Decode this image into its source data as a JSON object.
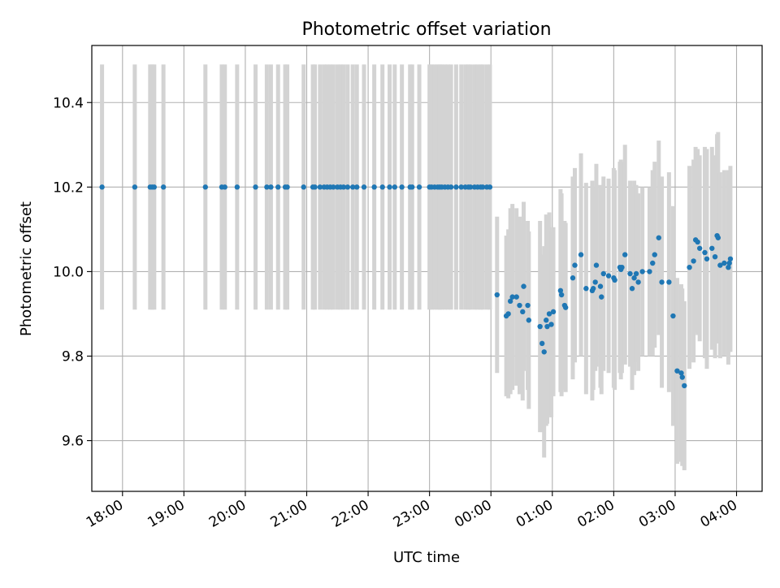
{
  "chart_data": {
    "type": "scatter",
    "title": "Photometric offset variation",
    "xlabel": "UTC time",
    "ylabel": "Photometric offset",
    "x_ticks": [
      "18:00",
      "19:00",
      "20:00",
      "21:00",
      "22:00",
      "23:00",
      "00:00",
      "01:00",
      "02:00",
      "03:00",
      "04:00"
    ],
    "y_ticks": [
      "9.6",
      "9.8",
      "10.0",
      "10.2",
      "10.4"
    ],
    "xlim": [
      "17:30",
      "04:25"
    ],
    "ylim": [
      9.48,
      10.535
    ],
    "grid": true,
    "legend": "none",
    "colors": {
      "points": "#1f77b4",
      "errorbars": "#d3d3d3",
      "grid": "#b0b0b0"
    },
    "series": [
      {
        "points": [
          [
            "17:40",
            10.2,
            0.29
          ],
          [
            "18:12",
            10.2,
            0.29
          ],
          [
            "18:27",
            10.2,
            0.29
          ],
          [
            "18:29",
            10.2,
            0.29
          ],
          [
            "18:31",
            10.2,
            0.29
          ],
          [
            "18:40",
            10.2,
            0.29
          ],
          [
            "19:21",
            10.2,
            0.29
          ],
          [
            "19:37",
            10.2,
            0.29
          ],
          [
            "19:40",
            10.2,
            0.29
          ],
          [
            "19:52",
            10.2,
            0.29
          ],
          [
            "20:10",
            10.2,
            0.29
          ],
          [
            "20:21",
            10.2,
            0.29
          ],
          [
            "20:25",
            10.2,
            0.29
          ],
          [
            "20:32",
            10.2,
            0.29
          ],
          [
            "20:39",
            10.2,
            0.29
          ],
          [
            "20:41",
            10.2,
            0.29
          ],
          [
            "20:57",
            10.2,
            0.29
          ],
          [
            "21:06",
            10.2,
            0.29
          ],
          [
            "21:08",
            10.2,
            0.29
          ],
          [
            "21:13",
            10.2,
            0.29
          ],
          [
            "21:17",
            10.2,
            0.29
          ],
          [
            "21:20",
            10.2,
            0.29
          ],
          [
            "21:23",
            10.2,
            0.29
          ],
          [
            "21:26",
            10.2,
            0.29
          ],
          [
            "21:30",
            10.2,
            0.29
          ],
          [
            "21:33",
            10.2,
            0.29
          ],
          [
            "21:36",
            10.2,
            0.29
          ],
          [
            "21:40",
            10.2,
            0.29
          ],
          [
            "21:45",
            10.2,
            0.29
          ],
          [
            "21:49",
            10.2,
            0.29
          ],
          [
            "21:56",
            10.2,
            0.29
          ],
          [
            "22:06",
            10.2,
            0.29
          ],
          [
            "22:14",
            10.2,
            0.29
          ],
          [
            "22:21",
            10.2,
            0.29
          ],
          [
            "22:26",
            10.2,
            0.29
          ],
          [
            "22:33",
            10.2,
            0.29
          ],
          [
            "22:41",
            10.2,
            0.29
          ],
          [
            "22:43",
            10.2,
            0.29
          ],
          [
            "22:50",
            10.2,
            0.29
          ],
          [
            "23:00",
            10.2,
            0.29
          ],
          [
            "23:02",
            10.2,
            0.29
          ],
          [
            "23:05",
            10.2,
            0.29
          ],
          [
            "23:08",
            10.2,
            0.29
          ],
          [
            "23:10",
            10.2,
            0.29
          ],
          [
            "23:12",
            10.2,
            0.29
          ],
          [
            "23:15",
            10.2,
            0.29
          ],
          [
            "23:18",
            10.2,
            0.29
          ],
          [
            "23:21",
            10.2,
            0.29
          ],
          [
            "23:26",
            10.2,
            0.29
          ],
          [
            "23:31",
            10.2,
            0.29
          ],
          [
            "23:35",
            10.2,
            0.29
          ],
          [
            "23:38",
            10.2,
            0.29
          ],
          [
            "23:40",
            10.2,
            0.29
          ],
          [
            "23:44",
            10.2,
            0.29
          ],
          [
            "23:47",
            10.2,
            0.29
          ],
          [
            "23:50",
            10.2,
            0.29
          ],
          [
            "23:52",
            10.2,
            0.29
          ],
          [
            "23:56",
            10.2,
            0.29
          ],
          [
            "23:59",
            10.2,
            0.29
          ],
          [
            "00:06",
            9.945,
            0.185
          ],
          [
            "00:15",
            9.895,
            0.19
          ],
          [
            "00:17",
            9.9,
            0.2
          ],
          [
            "00:19",
            9.93,
            0.22
          ],
          [
            "00:21",
            9.94,
            0.22
          ],
          [
            "00:25",
            9.94,
            0.21
          ],
          [
            "00:28",
            9.92,
            0.21
          ],
          [
            "00:31",
            9.905,
            0.21
          ],
          [
            "00:32",
            9.965,
            0.2
          ],
          [
            "00:36",
            9.92,
            0.2
          ],
          [
            "00:37",
            9.885,
            0.21
          ],
          [
            "00:48",
            9.87,
            0.25
          ],
          [
            "00:50",
            9.83,
            0.21
          ],
          [
            "00:52",
            9.81,
            0.25
          ],
          [
            "00:54",
            9.885,
            0.25
          ],
          [
            "00:55",
            9.87,
            0.23
          ],
          [
            "00:57",
            9.9,
            0.24
          ],
          [
            "00:59",
            9.875,
            0.22
          ],
          [
            "01:01",
            9.905,
            0.2
          ],
          [
            "01:08",
            9.955,
            0.24
          ],
          [
            "01:09",
            9.945,
            0.24
          ],
          [
            "01:12",
            9.92,
            0.2
          ],
          [
            "01:13",
            9.915,
            0.2
          ],
          [
            "01:20",
            9.985,
            0.24
          ],
          [
            "01:22",
            10.015,
            0.23
          ],
          [
            "01:28",
            10.04,
            0.24
          ],
          [
            "01:33",
            9.96,
            0.25
          ],
          [
            "01:39",
            9.955,
            0.26
          ],
          [
            "01:40",
            9.96,
            0.24
          ],
          [
            "01:42",
            9.975,
            0.21
          ],
          [
            "01:43",
            10.015,
            0.24
          ],
          [
            "01:47",
            9.965,
            0.24
          ],
          [
            "01:48",
            9.94,
            0.23
          ],
          [
            "01:50",
            9.995,
            0.23
          ],
          [
            "01:55",
            9.99,
            0.23
          ],
          [
            "02:00",
            9.985,
            0.26
          ],
          [
            "02:01",
            9.98,
            0.26
          ],
          [
            "02:06",
            10.01,
            0.25
          ],
          [
            "02:07",
            10.005,
            0.26
          ],
          [
            "02:08",
            10.01,
            0.25
          ],
          [
            "02:11",
            10.04,
            0.26
          ],
          [
            "02:16",
            9.995,
            0.22
          ],
          [
            "02:18",
            9.96,
            0.24
          ],
          [
            "02:20",
            9.985,
            0.23
          ],
          [
            "02:22",
            9.995,
            0.21
          ],
          [
            "02:24",
            9.975,
            0.21
          ],
          [
            "02:28",
            10.0,
            0.2
          ],
          [
            "02:35",
            10.0,
            0.2
          ],
          [
            "02:38",
            10.02,
            0.22
          ],
          [
            "02:40",
            10.04,
            0.22
          ],
          [
            "02:44",
            10.08,
            0.23
          ],
          [
            "02:47",
            9.975,
            0.25
          ],
          [
            "02:54",
            9.975,
            0.26
          ],
          [
            "02:58",
            9.895,
            0.26
          ],
          [
            "03:02",
            9.765,
            0.22
          ],
          [
            "03:06",
            9.76,
            0.21
          ],
          [
            "03:07",
            9.75,
            0.21
          ],
          [
            "03:09",
            9.73,
            0.2
          ],
          [
            "03:14",
            10.01,
            0.24
          ],
          [
            "03:18",
            10.025,
            0.24
          ],
          [
            "03:20",
            10.075,
            0.22
          ],
          [
            "03:22",
            10.07,
            0.22
          ],
          [
            "03:24",
            10.055,
            0.22
          ],
          [
            "03:29",
            10.045,
            0.25
          ],
          [
            "03:31",
            10.03,
            0.26
          ],
          [
            "03:36",
            10.055,
            0.24
          ],
          [
            "03:39",
            10.035,
            0.24
          ],
          [
            "03:41",
            10.085,
            0.24
          ],
          [
            "03:42",
            10.08,
            0.25
          ],
          [
            "03:44",
            10.015,
            0.22
          ],
          [
            "03:48",
            10.02,
            0.22
          ],
          [
            "03:52",
            10.01,
            0.23
          ],
          [
            "03:53",
            10.02,
            0.21
          ],
          [
            "03:54",
            10.03,
            0.22
          ]
        ]
      }
    ]
  }
}
